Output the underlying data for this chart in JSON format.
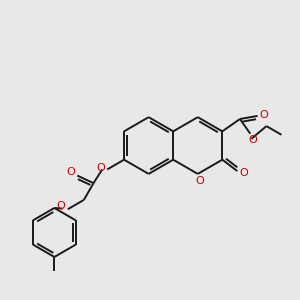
{
  "bg_color": "#e8e8e8",
  "bond_color": "#1a1a1a",
  "o_color": "#cc0000",
  "lw": 1.4,
  "figsize": [
    3.0,
    3.0
  ],
  "dpi": 100,
  "xlim": [
    0,
    10
  ],
  "ylim": [
    0,
    10
  ]
}
